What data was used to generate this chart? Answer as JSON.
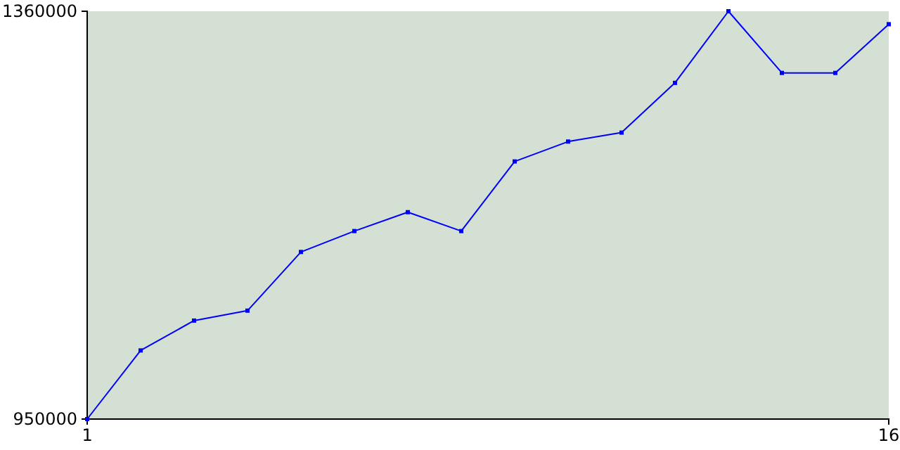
{
  "chart_data": {
    "type": "line",
    "x": [
      1,
      2,
      3,
      4,
      5,
      6,
      7,
      8,
      9,
      10,
      11,
      12,
      13,
      14,
      15,
      16
    ],
    "series": [
      {
        "color": "#0000ff",
        "values": [
          950000,
          1019000,
          1049000,
          1059000,
          1118000,
          1139000,
          1158000,
          1139000,
          1209000,
          1229000,
          1238000,
          1288000,
          1360000,
          1298000,
          1298000,
          1347000
        ]
      }
    ],
    "xlim": [
      1,
      16
    ],
    "ylim": [
      950000,
      1360000
    ],
    "xticks": [
      1,
      16
    ],
    "yticks": [
      950000,
      1360000
    ],
    "grid": false,
    "marker": "square",
    "line_style": "solid"
  }
}
